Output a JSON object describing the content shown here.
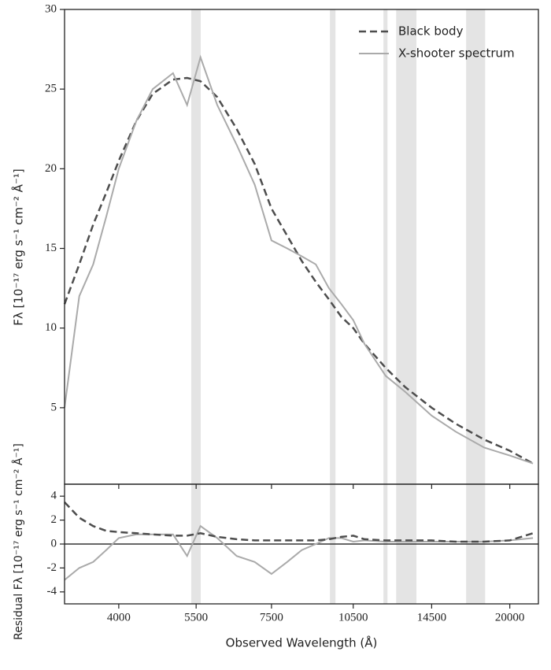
{
  "chart_data": [
    {
      "type": "line",
      "xscale": "log",
      "xlim": [
        3200,
        22500
      ],
      "ylim": [
        0.2,
        30
      ],
      "yticks": [
        5,
        10,
        15,
        20,
        25,
        30
      ],
      "ylabel": "Fλ [10⁻¹⁷ erg s⁻¹ cm⁻² Å⁻¹]",
      "x": [
        3200,
        3400,
        3600,
        3800,
        4000,
        4300,
        4600,
        5000,
        5300,
        5600,
        6000,
        6500,
        7000,
        7500,
        8000,
        8500,
        9000,
        9500,
        10000,
        10500,
        11000,
        12000,
        13000,
        14500,
        16000,
        18000,
        20000,
        22000
      ],
      "series": [
        {
          "name": "Black body",
          "color": "#4d4d4d",
          "dashed": true,
          "values": [
            11.5,
            14,
            16.5,
            18.5,
            20.5,
            23,
            24.7,
            25.6,
            25.7,
            25.5,
            24.5,
            22.5,
            20.3,
            17.5,
            15.8,
            14.2,
            12.9,
            11.8,
            10.7,
            10,
            9,
            7.5,
            6.3,
            5,
            4,
            3,
            2.3,
            1.5
          ]
        },
        {
          "name": "X-shooter spectrum",
          "color": "#aaaaaa",
          "dashed": false,
          "values": [
            5,
            12,
            14,
            17,
            20,
            23,
            25,
            26,
            24,
            27,
            24,
            21.5,
            19,
            15.5,
            15,
            14.5,
            14,
            12.5,
            11.5,
            10.5,
            9,
            7,
            6,
            4.5,
            3.5,
            2.5,
            2,
            1.5
          ]
        }
      ],
      "shaded_regions": [
        [
          5390,
          5605
        ],
        [
          9540,
          9760
        ],
        [
          11890,
          12090
        ],
        [
          12530,
          13620
        ],
        [
          16710,
          18070
        ]
      ],
      "legend": "upper right"
    },
    {
      "type": "line",
      "xscale": "log",
      "xlim": [
        3200,
        22500
      ],
      "ylim": [
        -5,
        5
      ],
      "yticks": [
        -4,
        -2,
        0,
        2,
        4
      ],
      "hline": 0,
      "xticks": [
        4000,
        5500,
        7500,
        10500,
        14500,
        20000
      ],
      "xlabel": "Observed Wavelength (Å)",
      "ylabel": "Residual Fλ [10⁻¹⁷ erg s⁻¹ cm⁻² Å⁻¹]",
      "x": [
        3200,
        3400,
        3600,
        3800,
        4000,
        4300,
        4600,
        5000,
        5300,
        5600,
        6000,
        6500,
        7000,
        7500,
        8000,
        8500,
        9000,
        9500,
        10000,
        10500,
        11000,
        12000,
        13000,
        14500,
        16000,
        18000,
        20000,
        22000
      ],
      "series": [
        {
          "color": "#aaaaaa",
          "dashed": false,
          "values": [
            -3,
            -2,
            -1.5,
            -0.5,
            0.5,
            0.8,
            0.8,
            0.8,
            -1,
            1.5,
            0.5,
            -1,
            -1.5,
            -2.5,
            -1.5,
            -0.5,
            0,
            0.5,
            0.5,
            0.2,
            0.3,
            0.2,
            0.2,
            0.2,
            0.2,
            0.2,
            0.3,
            0.5
          ]
        },
        {
          "color": "#4d4d4d",
          "dashed": true,
          "values": [
            3.5,
            2.2,
            1.5,
            1.1,
            1,
            0.9,
            0.8,
            0.7,
            0.7,
            0.9,
            0.6,
            0.4,
            0.3,
            0.3,
            0.3,
            0.3,
            0.3,
            0.4,
            0.6,
            0.7,
            0.4,
            0.3,
            0.3,
            0.3,
            0.2,
            0.2,
            0.3,
            0.9
          ]
        }
      ]
    }
  ]
}
